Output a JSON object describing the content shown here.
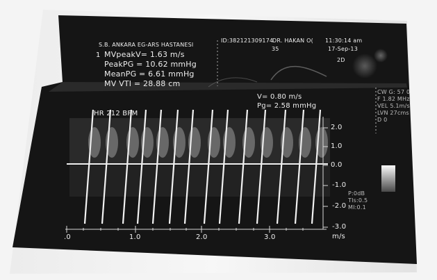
{
  "header": {
    "hospital": "S.B. ANKARA EG-ARS HASTANESI",
    "patient_id": "ID:382121309174",
    "doctor": "DR. HAKAN O(",
    "age": "35",
    "time": "11:30:14 am",
    "date": "17-Sep-13"
  },
  "measurements": {
    "index": "1",
    "mv_peak_v": "MVpeakV= 1.63 m/s",
    "peak_pg": "PeakPG = 10.62 mmHg",
    "mean_pg": "MeanPG = 6.61 mmHg",
    "mv_vti": "MV VTI = 28.88 cm"
  },
  "cursor_readout": {
    "velocity": "V= 0.80 m/s",
    "gradient": "Pg= 2.58 mmHg"
  },
  "right_panel": {
    "mode": "2D",
    "cw_lines": [
      "CW G: 57 0",
      "F 1.82 MHz",
      "VEL 5.1m/s",
      "LVN 27cms",
      "D 0"
    ],
    "bottom_lines": [
      "P:0dB",
      "TIs:0.5",
      "MI:0.1"
    ]
  },
  "heart_rate": "HR 212 BPM",
  "velocity_axis": {
    "unit": "m/s",
    "ticks": [
      "2.0",
      "1.0",
      "0.0",
      "-1.0",
      "-2.0",
      "-3.0"
    ]
  },
  "time_axis": {
    "ticks": [
      ".0",
      "1.0",
      "2.0",
      "3.0"
    ]
  },
  "colors": {
    "paper": "#f4f4f4",
    "screen": "#151515",
    "text": "#eeeeee"
  }
}
